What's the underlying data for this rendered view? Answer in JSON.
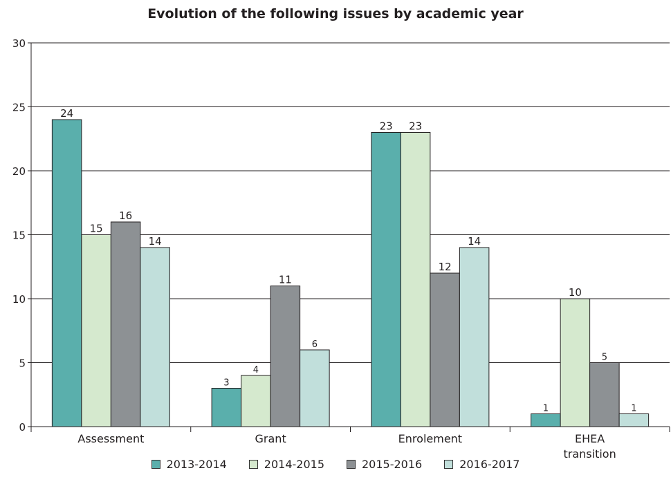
{
  "chart_data": {
    "type": "bar",
    "title": "Evolution of the following issues by academic year",
    "xlabel": "",
    "ylabel": "",
    "ylim": [
      0,
      30
    ],
    "yticks": [
      0,
      5,
      10,
      15,
      20,
      25,
      30
    ],
    "grid": true,
    "legend_position": "bottom",
    "categories": [
      "Assessment",
      "Grant",
      "Enrolement",
      "EHEA transition"
    ],
    "series": [
      {
        "name": "2013-2014",
        "color": "#5aafac",
        "values": [
          24,
          3,
          23,
          1
        ]
      },
      {
        "name": "2014-2015",
        "color": "#d5e9ce",
        "values": [
          15,
          4,
          23,
          10
        ]
      },
      {
        "name": "2015-2016",
        "color": "#8d9194",
        "values": [
          16,
          11,
          12,
          5
        ]
      },
      {
        "name": "2016-2017",
        "color": "#c1dfdb",
        "values": [
          14,
          6,
          14,
          1
        ]
      }
    ]
  }
}
